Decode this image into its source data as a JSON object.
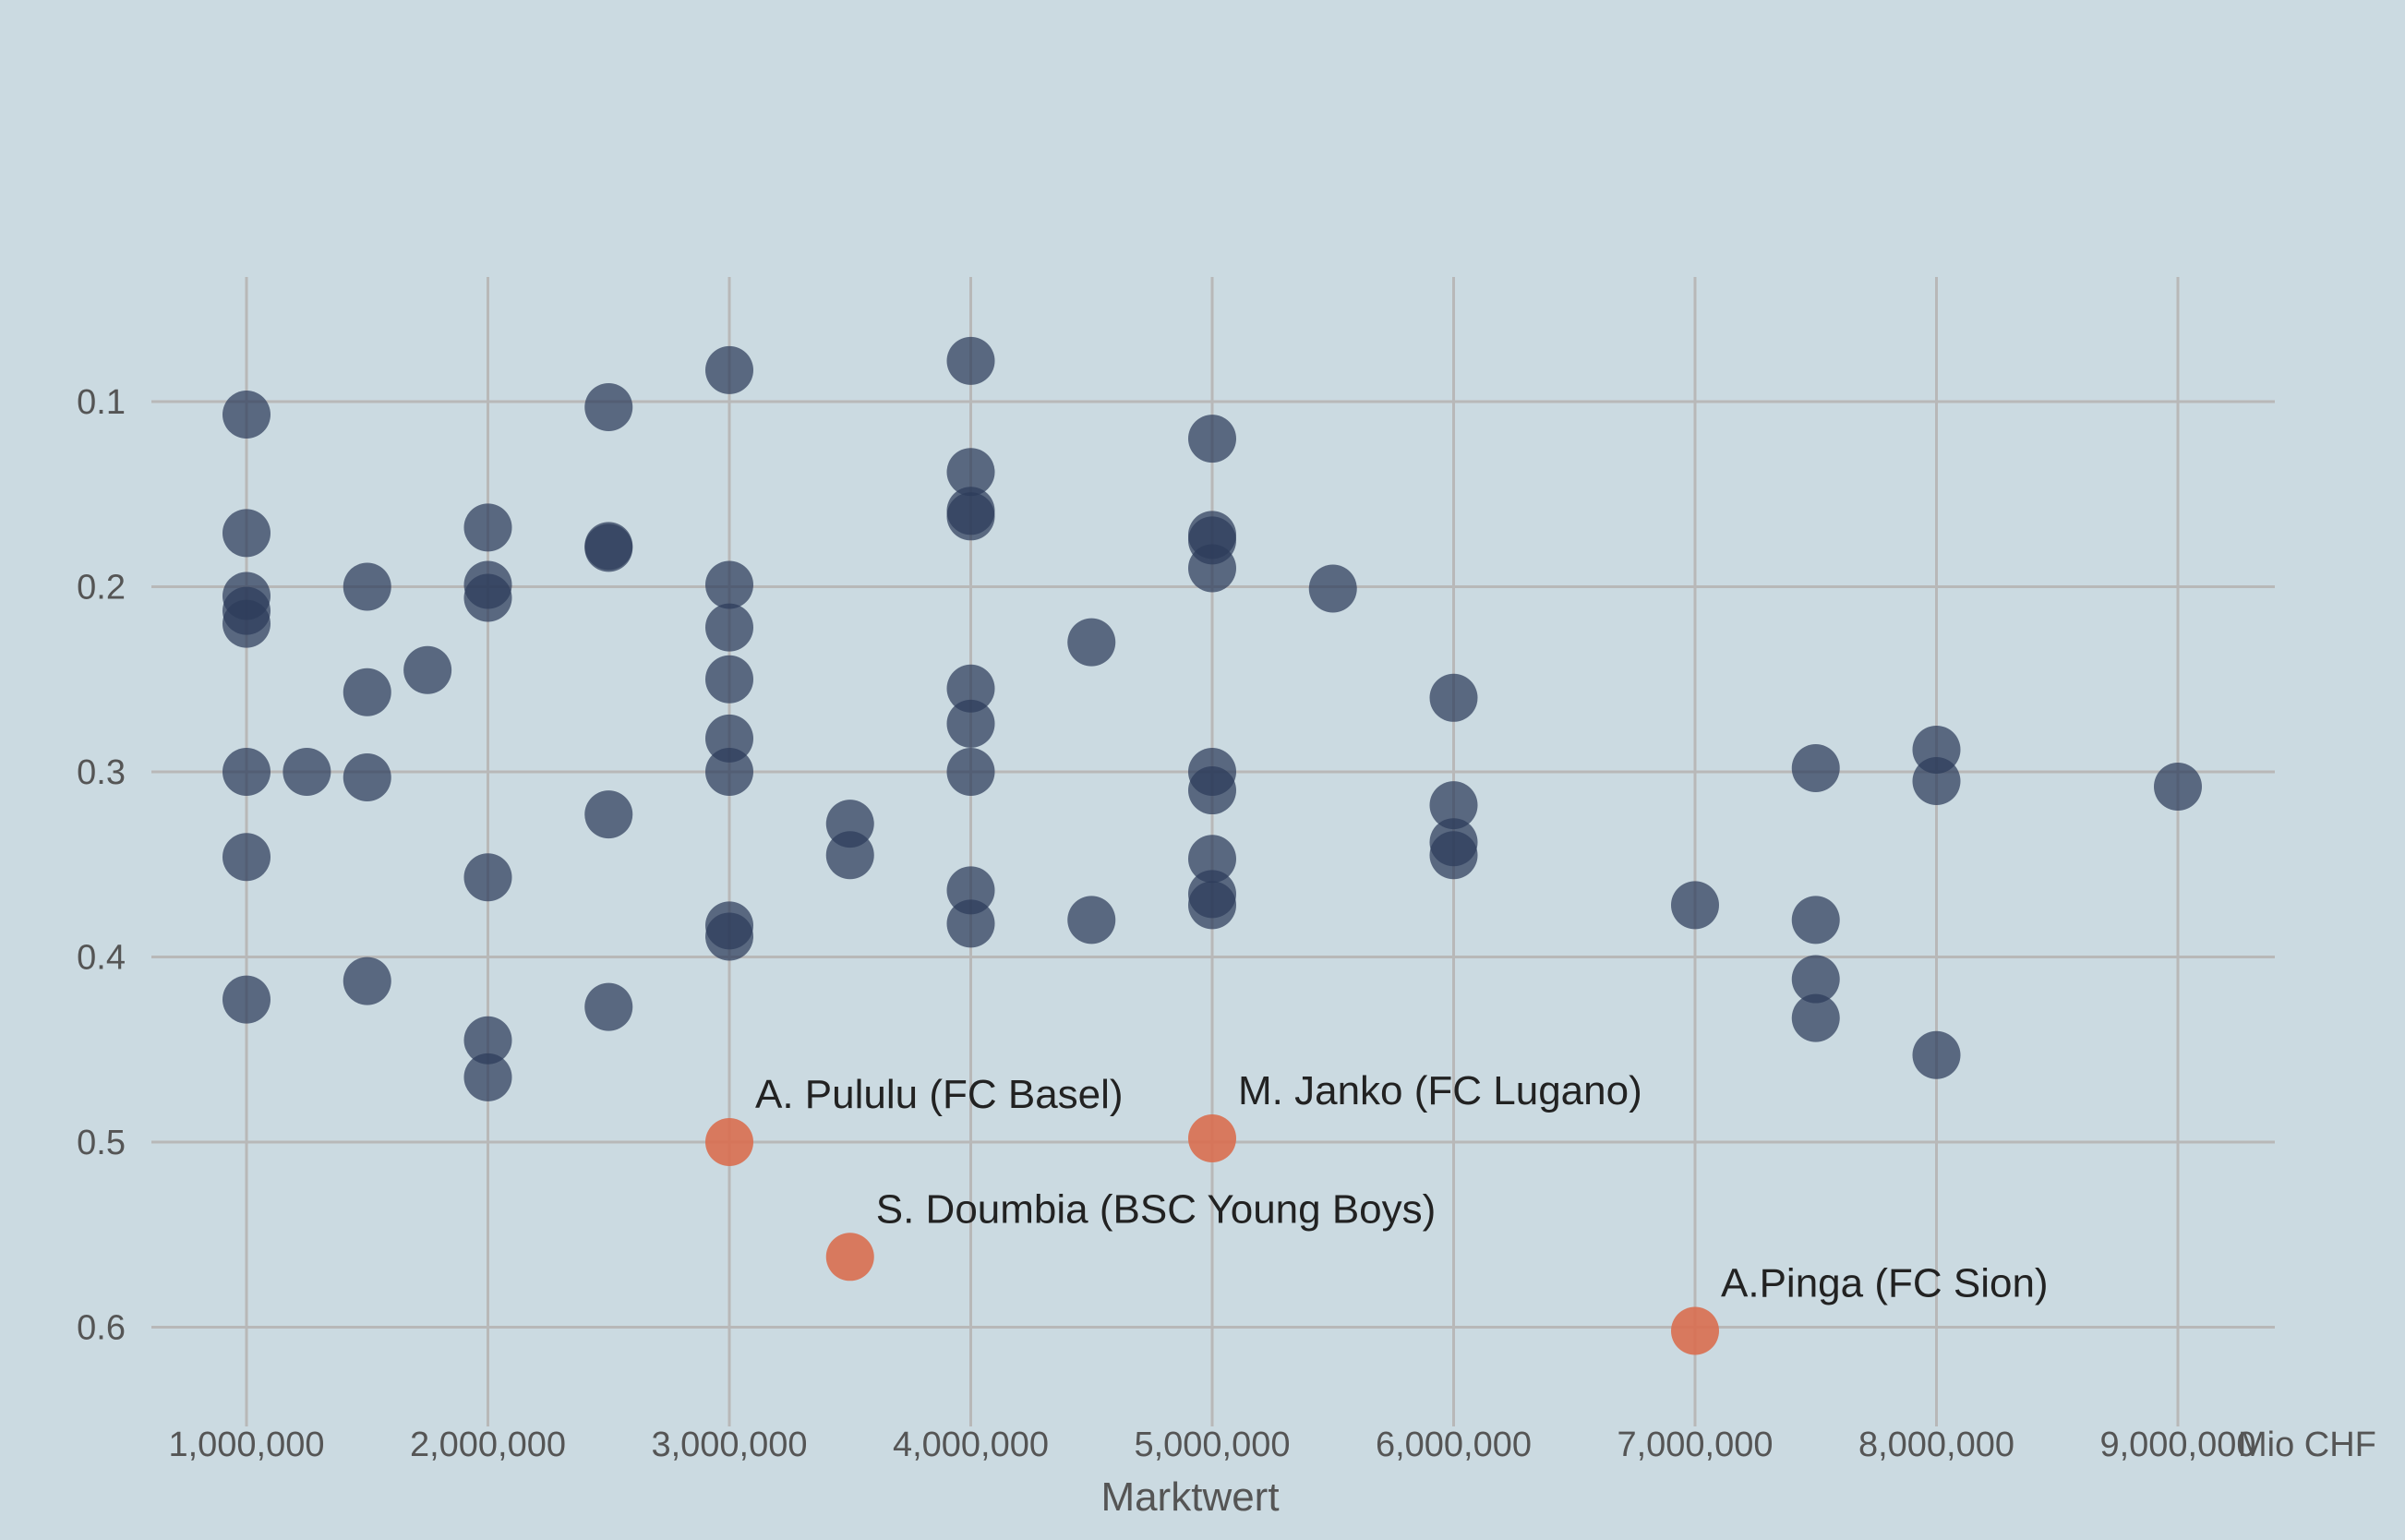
{
  "chart_data": {
    "type": "scatter",
    "title": "",
    "xlabel": "Marktwert",
    "ylabel": "",
    "x_unit": "Mio CHF",
    "xlim": [
      600000,
      9400000
    ],
    "ylim": [
      0.65,
      0.0
    ],
    "y_axis_inverted": true,
    "grid": true,
    "x_ticks": [
      1000000,
      2000000,
      3000000,
      4000000,
      5000000,
      6000000,
      7000000,
      8000000,
      9000000
    ],
    "x_tick_labels": [
      "1,000,000",
      "2,000,000",
      "3,000,000",
      "4,000,000",
      "5,000,000",
      "6,000,000",
      "7,000,000",
      "8,000,000",
      "9,000,000"
    ],
    "y_ticks": [
      0.1,
      0.2,
      0.3,
      0.4,
      0.5,
      0.6
    ],
    "y_tick_labels": [
      "0.1",
      "0.2",
      "0.3",
      "0.4",
      "0.5",
      "0.6"
    ],
    "colors": {
      "default": "#2d3c5a",
      "highlight": "#d96e50",
      "background": "#cbdae1"
    },
    "series": [
      {
        "values": [
          [
            1000000,
            0.107
          ],
          [
            1000000,
            0.171
          ],
          [
            1000000,
            0.205
          ],
          [
            1000000,
            0.213
          ],
          [
            1000000,
            0.22
          ],
          [
            1000000,
            0.3
          ],
          [
            1000000,
            0.346
          ],
          [
            1000000,
            0.423
          ],
          [
            1250000,
            0.3
          ],
          [
            1500000,
            0.2
          ],
          [
            1500000,
            0.257
          ],
          [
            1500000,
            0.303
          ],
          [
            1500000,
            0.413
          ],
          [
            1750000,
            0.245
          ],
          [
            2000000,
            0.168
          ],
          [
            2000000,
            0.199
          ],
          [
            2000000,
            0.206
          ],
          [
            2000000,
            0.357
          ],
          [
            2000000,
            0.445
          ],
          [
            2000000,
            0.465
          ],
          [
            2500000,
            0.103
          ],
          [
            2500000,
            0.178
          ],
          [
            2500000,
            0.179
          ],
          [
            2500000,
            0.323
          ],
          [
            2500000,
            0.427
          ],
          [
            3000000,
            0.083
          ],
          [
            3000000,
            0.199
          ],
          [
            3000000,
            0.222
          ],
          [
            3000000,
            0.25
          ],
          [
            3000000,
            0.282
          ],
          [
            3000000,
            0.3
          ],
          [
            3000000,
            0.383
          ],
          [
            3000000,
            0.389
          ],
          [
            3500000,
            0.328
          ],
          [
            3500000,
            0.345
          ],
          [
            4000000,
            0.078
          ],
          [
            4000000,
            0.138
          ],
          [
            4000000,
            0.159
          ],
          [
            4000000,
            0.162
          ],
          [
            4000000,
            0.255
          ],
          [
            4000000,
            0.274
          ],
          [
            4000000,
            0.3
          ],
          [
            4000000,
            0.364
          ],
          [
            4000000,
            0.382
          ],
          [
            4500000,
            0.23
          ],
          [
            4500000,
            0.38
          ],
          [
            5000000,
            0.12
          ],
          [
            5000000,
            0.172
          ],
          [
            5000000,
            0.175
          ],
          [
            5000000,
            0.19
          ],
          [
            5000000,
            0.3
          ],
          [
            5000000,
            0.31
          ],
          [
            5000000,
            0.347
          ],
          [
            5000000,
            0.366
          ],
          [
            5000000,
            0.372
          ],
          [
            5500000,
            0.201
          ],
          [
            6000000,
            0.26
          ],
          [
            6000000,
            0.318
          ],
          [
            6000000,
            0.338
          ],
          [
            6000000,
            0.345
          ],
          [
            7000000,
            0.372
          ],
          [
            7500000,
            0.298
          ],
          [
            7500000,
            0.38
          ],
          [
            7500000,
            0.412
          ],
          [
            7500000,
            0.433
          ],
          [
            8000000,
            0.288
          ],
          [
            8000000,
            0.305
          ],
          [
            8000000,
            0.453
          ],
          [
            9000000,
            0.308
          ]
        ]
      },
      {
        "values": [
          [
            3000000,
            0.5,
            "A. Pululu (FC Basel)"
          ],
          [
            5000000,
            0.498,
            "M. Janko (FC Lugano)"
          ],
          [
            3500000,
            0.562,
            "S. Doumbia (BSC Young Boys)"
          ],
          [
            7000000,
            0.602,
            "A.Pinga (FC Sion)"
          ]
        ]
      }
    ]
  }
}
